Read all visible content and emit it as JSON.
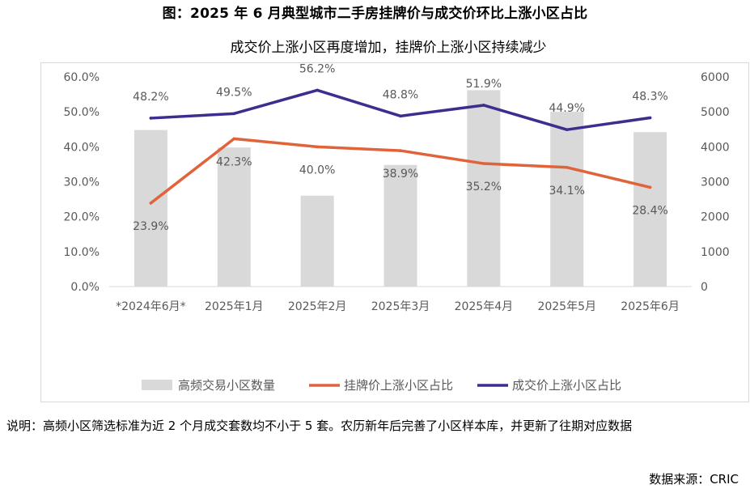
{
  "title": "图：2025 年 6 月典型城市二手房挂牌价与成交价环比上涨小区占比",
  "note": "说明：高频小区筛选标准为近 2 个月成交套数均不小于 5 套。农历新年后完善了小区样本库，并更新了往期对应数据",
  "source": "数据来源：CRIC",
  "colors": {
    "bar": "#d9d9d9",
    "listing": "#e0633a",
    "transaction": "#3b2e8f",
    "grid": "#d9d9d9",
    "text": "#595959"
  },
  "chart_data": {
    "type": "bar",
    "subtitle": "成交价上涨小区再度增加，挂牌价上涨小区持续减少",
    "categories": [
      "*2024年6月*",
      "2025年1月",
      "2025年2月",
      "2025年3月",
      "2025年4月",
      "2025年5月",
      "2025年6月"
    ],
    "y_left": {
      "min": 0,
      "max": 60,
      "ticks": [
        "0.0%",
        "10.0%",
        "20.0%",
        "30.0%",
        "40.0%",
        "50.0%",
        "60.0%"
      ]
    },
    "y_right": {
      "min": 0,
      "max": 6000,
      "ticks": [
        "0",
        "1000",
        "2000",
        "3000",
        "4000",
        "5000",
        "6000"
      ]
    },
    "series": [
      {
        "name": "高频交易小区数量",
        "type": "bar",
        "axis": "right",
        "values": [
          4480,
          3980,
          2600,
          3480,
          5620,
          5000,
          4420
        ]
      },
      {
        "name": "挂牌价上涨小区占比",
        "type": "line",
        "axis": "left",
        "values": [
          23.9,
          42.3,
          40.0,
          38.9,
          35.2,
          34.1,
          28.4
        ],
        "labels": [
          "23.9%",
          "42.3%",
          "40.0%",
          "38.9%",
          "35.2%",
          "34.1%",
          "28.4%"
        ]
      },
      {
        "name": "成交价上涨小区占比",
        "type": "line",
        "axis": "left",
        "values": [
          48.2,
          49.5,
          56.2,
          48.8,
          51.9,
          44.9,
          48.3
        ],
        "labels": [
          "48.2%",
          "49.5%",
          "56.2%",
          "48.8%",
          "51.9%",
          "44.9%",
          "48.3%"
        ]
      }
    ],
    "legend_position": "bottom",
    "grid": false
  }
}
